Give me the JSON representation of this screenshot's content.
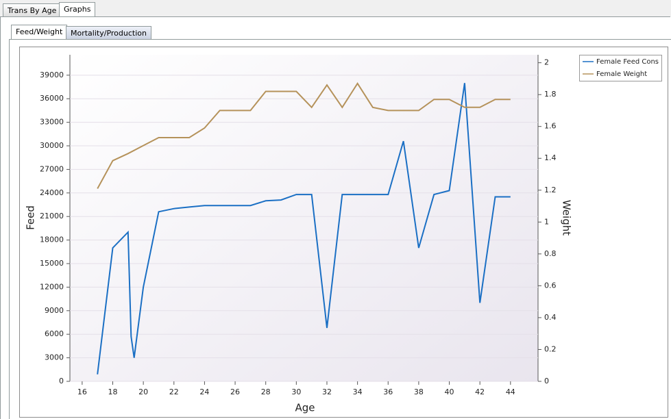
{
  "tabs": [
    "Trans By Age",
    "Graphs"
  ],
  "subtabs": [
    "Feed/Weight",
    "Mortality/Production"
  ],
  "chart_data": {
    "type": "line",
    "x_label": "Age",
    "y_label": "Feed",
    "y2_label": "Weight",
    "xlim": [
      15.2,
      45.8
    ],
    "xticks": [
      16,
      18,
      20,
      22,
      24,
      26,
      28,
      30,
      32,
      34,
      36,
      38,
      40,
      42,
      44
    ],
    "ylim": [
      0,
      41600
    ],
    "yticks": [
      0,
      3000,
      6000,
      9000,
      12000,
      15000,
      18000,
      21000,
      24000,
      27000,
      30000,
      33000,
      36000,
      39000
    ],
    "y2lim": [
      0,
      2.05
    ],
    "y2ticks": [
      0,
      0.2,
      0.4,
      0.6,
      0.8,
      1,
      1.2,
      1.4,
      1.6,
      1.8,
      2
    ],
    "grid": true,
    "legend": "upper right",
    "series": [
      {
        "name": "Female Feed Cons",
        "color": "#1a6fc4",
        "x": [
          17,
          18,
          19,
          19.2,
          19.4,
          20,
          21,
          22,
          23,
          24,
          25,
          26,
          27,
          28,
          29,
          30,
          31,
          32,
          33,
          34,
          35,
          36,
          37,
          38,
          39,
          40,
          41,
          42,
          43,
          44
        ],
        "values": [
          900,
          17000,
          19000,
          5700,
          3000,
          12000,
          21600,
          22000,
          22200,
          22400,
          22400,
          22400,
          22400,
          23000,
          23100,
          23800,
          23800,
          6800,
          23800,
          23800,
          23800,
          23800,
          30600,
          17000,
          23800,
          24300,
          38000,
          10000,
          23500,
          23500
        ]
      },
      {
        "name": "Female Weight",
        "color": "#b5925a",
        "axis": "y2",
        "x": [
          17,
          18,
          19,
          20,
          21,
          22,
          23,
          24,
          25,
          26,
          27,
          28,
          29,
          30,
          31,
          32,
          33,
          34,
          35,
          36,
          37,
          38,
          39,
          40,
          41,
          42,
          43,
          44
        ],
        "values": [
          1.21,
          1.385,
          1.43,
          1.48,
          1.53,
          1.53,
          1.53,
          1.59,
          1.7,
          1.7,
          1.7,
          1.82,
          1.82,
          1.82,
          1.72,
          1.86,
          1.72,
          1.87,
          1.72,
          1.7,
          1.7,
          1.7,
          1.77,
          1.77,
          1.72,
          1.72,
          1.77,
          1.77
        ]
      }
    ]
  }
}
